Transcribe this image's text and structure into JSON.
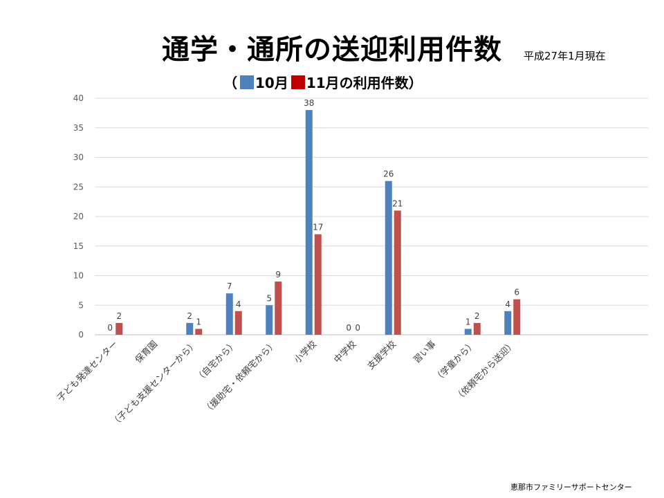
{
  "title": "通学・通所の送迎利用件数",
  "as_of": "平成27年1月現在",
  "subtitle": {
    "open_paren": "（",
    "series1_label": "10月",
    "series2_label": "11月の利用件数",
    "close_paren": "）"
  },
  "footer": "恵那市ファミリーサポートセンター",
  "colors": {
    "series1": "#4f81bd",
    "series2": "#c0504d",
    "legend_red": "#c00000",
    "grid": "#d9d9d9"
  },
  "chart_data": {
    "type": "bar",
    "title": "通学・通所の送迎利用件数",
    "categories": [
      "子ども発達センター",
      "保育園",
      "（子ども支援センターから）",
      "（自宅から）",
      "（援助宅・依頼宅から）",
      "小学校",
      "中学校",
      "支援学校",
      "習い事",
      "（学童から）",
      "（依頼宅から送迎）"
    ],
    "series": [
      {
        "name": "10月",
        "values": [
          0,
          null,
          2,
          7,
          5,
          38,
          0,
          26,
          null,
          1,
          4
        ]
      },
      {
        "name": "11月",
        "values": [
          2,
          null,
          1,
          4,
          9,
          17,
          0,
          21,
          null,
          2,
          6
        ]
      }
    ],
    "yticks": [
      0,
      5,
      10,
      15,
      20,
      25,
      30,
      35,
      40
    ],
    "ylim": [
      0,
      40
    ],
    "xlabel": "",
    "ylabel": "",
    "grid": true
  }
}
